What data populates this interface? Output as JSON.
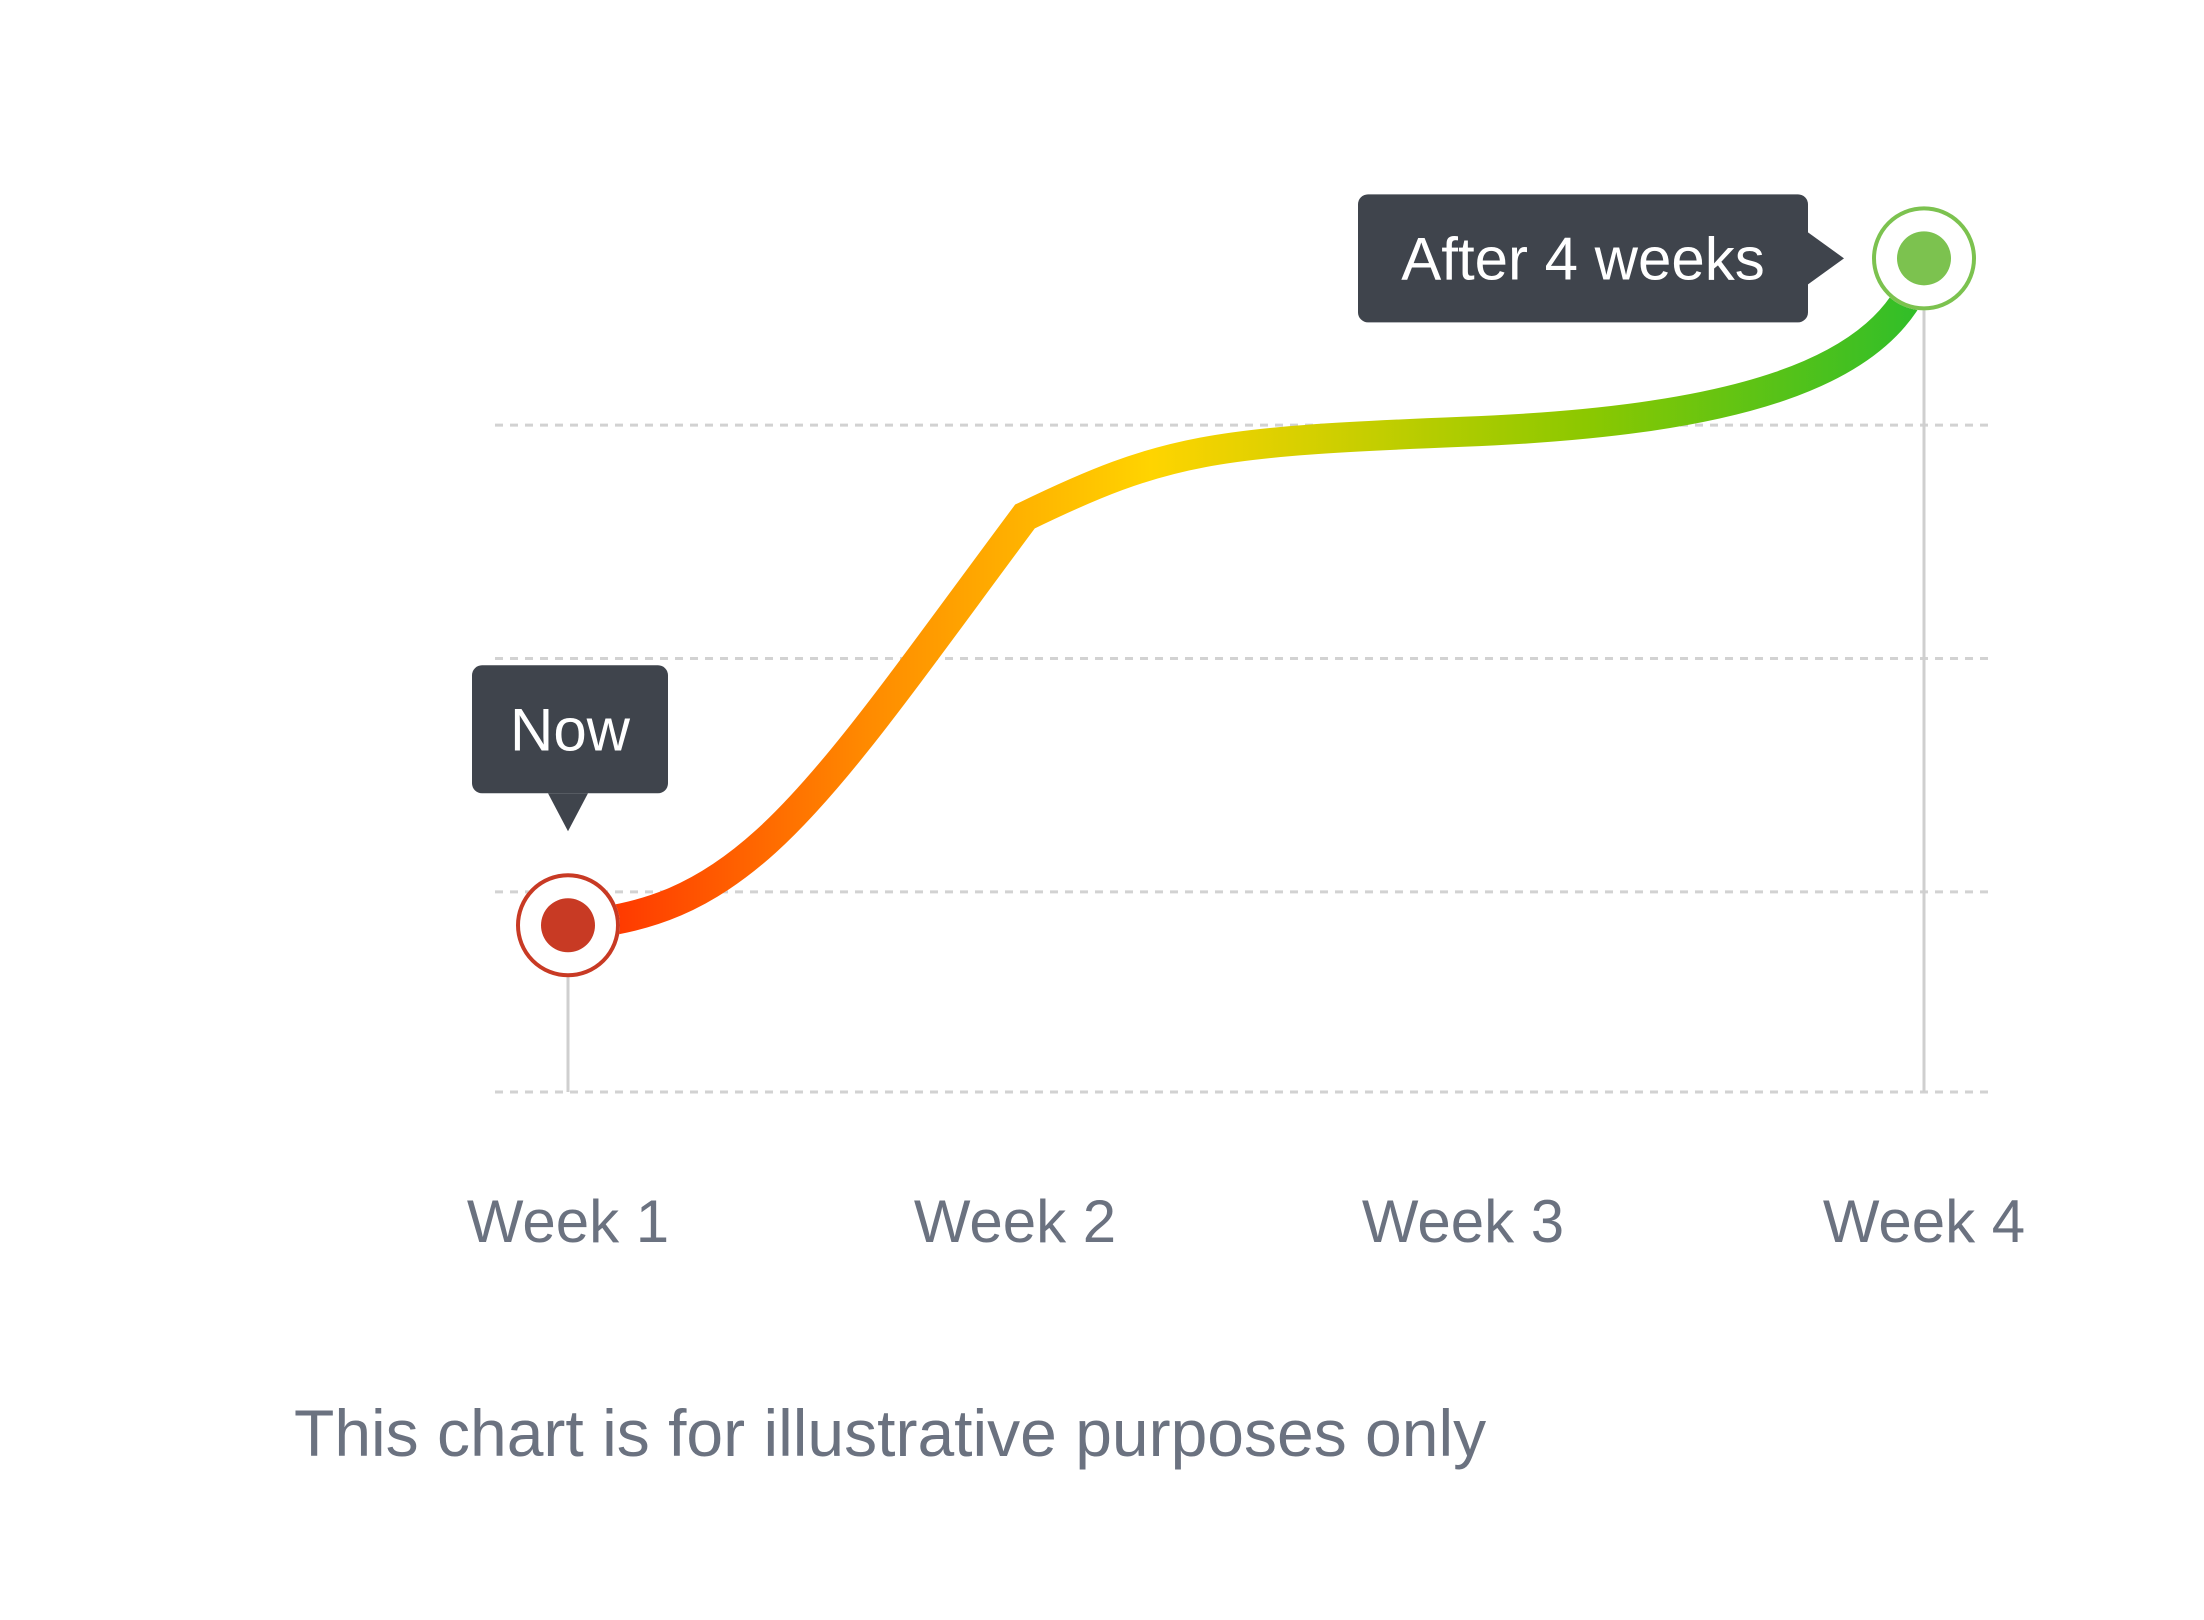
{
  "chart_data": {
    "type": "line",
    "categories": [
      "Week 1",
      "Week 2",
      "Week 3",
      "Week 4"
    ],
    "series": [
      {
        "values": [
          1.0,
          3.5,
          3.9,
          5.0
        ]
      }
    ],
    "ylim": [
      0,
      5.5
    ],
    "grid": true,
    "annotations": [
      {
        "text": "Now",
        "category": "Week 1",
        "style": "tooltip-above"
      },
      {
        "text": "After 4 weeks",
        "category": "Week 4",
        "style": "tooltip-left"
      }
    ],
    "gradient": [
      "#ff2a00",
      "#ff8a00",
      "#ffd400",
      "#8cc800",
      "#2fbe2a"
    ],
    "start_marker_color": "#c83a24",
    "end_marker_color": "#7cc24f",
    "tooltip_color": "#3f444c",
    "grid_color": "#d2d2d2",
    "label_color": "#6b7280"
  },
  "footnote": "This chart is for illustrative purposes only"
}
